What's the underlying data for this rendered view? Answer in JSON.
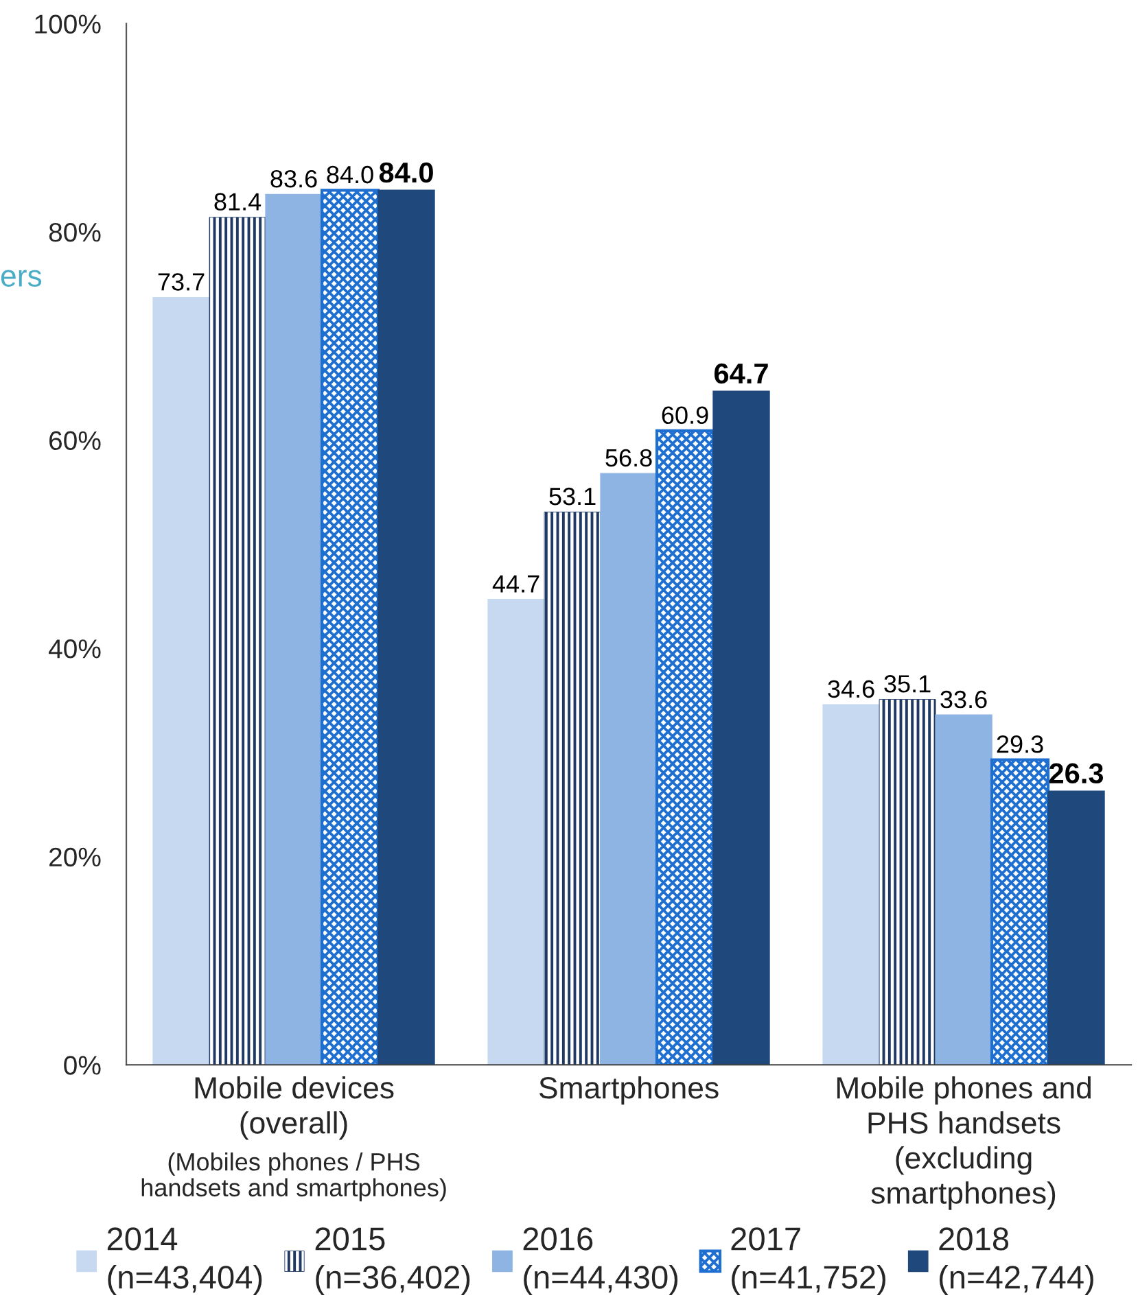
{
  "chart_data": {
    "type": "bar",
    "categories": [
      "Mobile devices\n(overall)",
      "Smartphones",
      "Mobile phones and\nPHS handsets\n(excluding\nsmartphones)"
    ],
    "series": [
      {
        "name": "2014\n(n=43,404)",
        "color": "#c6d9f1",
        "values": [
          73.7,
          44.7,
          34.6
        ],
        "value_labels": [
          "73.7",
          "44.7",
          "34.6"
        ]
      },
      {
        "name": "2015\n(n=36,402)",
        "color": "#1f3864",
        "values": [
          81.4,
          53.1,
          35.1
        ],
        "value_labels": [
          "81.4",
          "53.1",
          "35.1"
        ]
      },
      {
        "name": "2016\n(n=44,430)",
        "color": "#8eb4e3",
        "values": [
          83.6,
          56.8,
          33.6
        ],
        "value_labels": [
          "83.6",
          "56.8",
          "33.6"
        ]
      },
      {
        "name": "2017\n(n=41,752)",
        "color": "#1f6fd1",
        "values": [
          84.0,
          60.9,
          29.3
        ],
        "value_labels": [
          "84.0",
          "60.9",
          "29.3"
        ]
      },
      {
        "name": "2018\n(n=42,744)",
        "color": "#1f497d",
        "values": [
          84.0,
          64.7,
          26.3
        ],
        "value_labels": [
          "84.0",
          "64.7",
          "26.3"
        ]
      }
    ],
    "ylim": [
      0,
      100
    ],
    "yticks": [
      {
        "value": 0,
        "label": "0%"
      },
      {
        "value": 20,
        "label": "20%"
      },
      {
        "value": 40,
        "label": "40%"
      },
      {
        "value": 60,
        "label": "60%"
      },
      {
        "value": 80,
        "label": "80%"
      },
      {
        "value": 100,
        "label": "100%"
      }
    ],
    "grid": false,
    "legend": "bottom",
    "annotations": [
      "ers",
      "(Mobiles phones / PHS\nhandsets and smartphones)"
    ]
  }
}
